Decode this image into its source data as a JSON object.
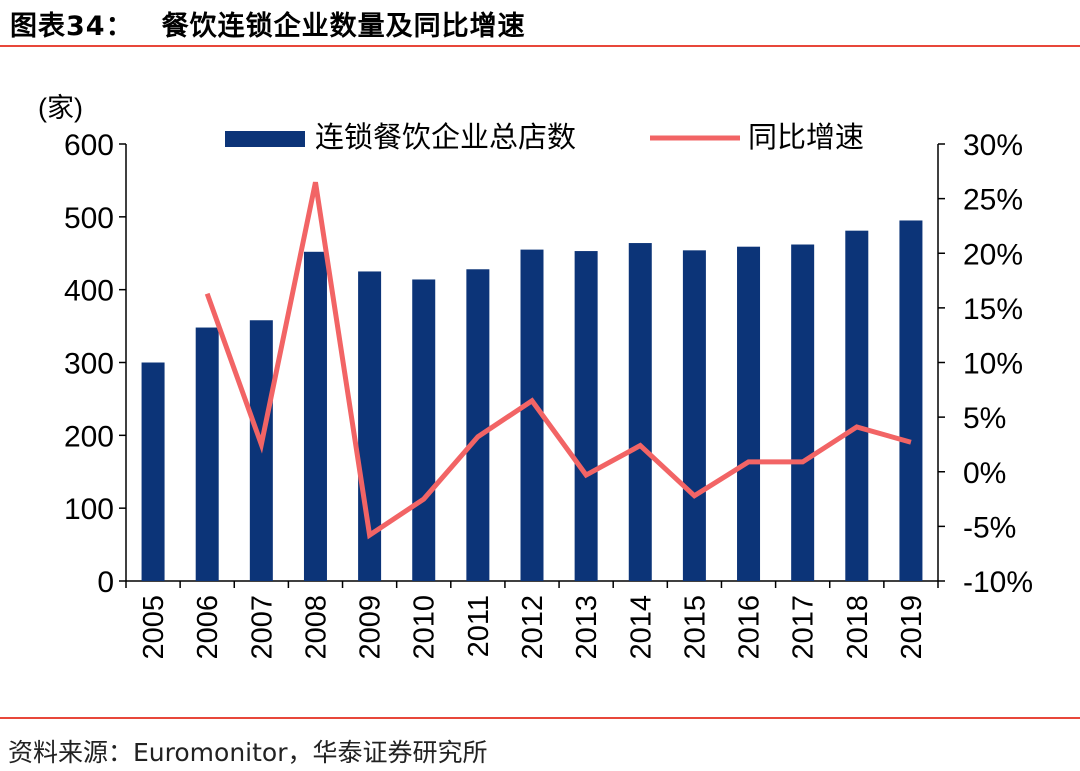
{
  "figure": {
    "number_label": "图表34：",
    "title": "餐饮连锁企业数量及同比增速",
    "source": "资料来源：Euromonitor，华泰证券研究所"
  },
  "colors": {
    "bar": "#0c3478",
    "line": "#f26465",
    "rule": "#e8473a",
    "axis": "#000000"
  },
  "chart_data": {
    "type": "bar",
    "categories": [
      "2005",
      "2006",
      "2007",
      "2008",
      "2009",
      "2010",
      "2011",
      "2012",
      "2013",
      "2014",
      "2015",
      "2016",
      "2017",
      "2018",
      "2019"
    ],
    "y_unit_label": "(家)",
    "ylim": [
      0,
      600
    ],
    "yticks": [
      0,
      100,
      200,
      300,
      400,
      500,
      600
    ],
    "y2lim": [
      -10,
      30
    ],
    "y2ticks": [
      -10,
      -5,
      0,
      5,
      10,
      15,
      20,
      25,
      30
    ],
    "y2tick_labels": [
      "-10%",
      "-5%",
      "0%",
      "5%",
      "10%",
      "15%",
      "20%",
      "25%",
      "30%"
    ],
    "legend_position": "top",
    "series": [
      {
        "name": "连锁餐饮企业总店数",
        "type": "bar",
        "axis": "left",
        "values": [
          300,
          348,
          358,
          452,
          425,
          414,
          428,
          455,
          453,
          464,
          454,
          459,
          462,
          481,
          495
        ]
      },
      {
        "name": "同比增速",
        "type": "line",
        "axis": "right",
        "unit": "%",
        "values": [
          null,
          16.3,
          2.5,
          26.5,
          -5.8,
          -2.5,
          3.2,
          6.5,
          -0.3,
          2.4,
          -2.2,
          0.9,
          0.9,
          4.1,
          2.7
        ]
      }
    ]
  }
}
